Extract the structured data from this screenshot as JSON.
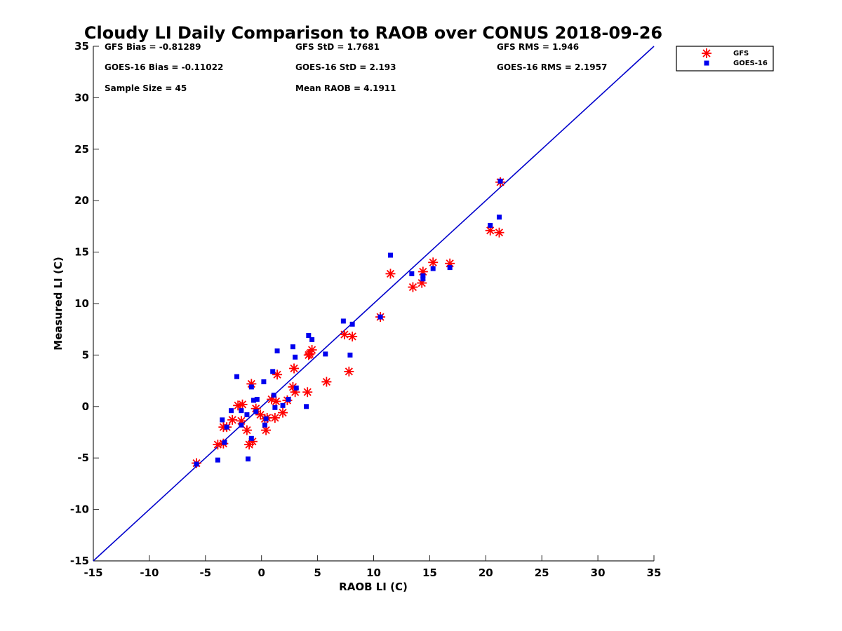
{
  "chart_data": {
    "type": "scatter",
    "title": "Cloudy LI Daily Comparison to RAOB over CONUS 2018-09-26",
    "xlabel": "RAOB LI (C)",
    "ylabel": "Measured LI (C)",
    "xlim": [
      -15,
      35
    ],
    "ylim": [
      -15,
      35
    ],
    "xticks": [
      -15,
      -10,
      -5,
      0,
      5,
      10,
      15,
      20,
      25,
      30,
      35
    ],
    "yticks": [
      -15,
      -10,
      -5,
      0,
      5,
      10,
      15,
      20,
      25,
      30,
      35
    ],
    "tick_labels_x": [
      "-15",
      "-10",
      "-5",
      "0",
      "5",
      "10",
      "15",
      "20",
      "25",
      "30",
      "35"
    ],
    "tick_labels_y": [
      "-15",
      "-10",
      "-5",
      "0",
      "5",
      "10",
      "15",
      "20",
      "25",
      "30",
      "35"
    ],
    "grid": false,
    "legend_position": "outside top-right",
    "reference_line": {
      "x": [
        -15,
        35
      ],
      "y": [
        -15,
        35
      ],
      "color": "#0000cc"
    },
    "stats": [
      "GFS Bias = -0.81289",
      "GFS StD = 1.7681",
      "GFS RMS = 1.946",
      "GOES-16 Bias = -0.11022",
      "GOES-16 StD = 2.193",
      "GOES-16 RMS = 2.1957",
      "Sample Size = 45",
      "Mean RAOB = 4.1911"
    ],
    "series": [
      {
        "name": "GFS",
        "marker": "asterisk",
        "color": "#ff0000",
        "points": [
          [
            -5.8,
            -5.5
          ],
          [
            -3.9,
            -3.7
          ],
          [
            -3.4,
            -3.6
          ],
          [
            -3.4,
            -2.0
          ],
          [
            -3.1,
            -2.0
          ],
          [
            -2.6,
            -1.3
          ],
          [
            -2.1,
            0.1
          ],
          [
            -1.8,
            -1.4
          ],
          [
            -1.7,
            0.2
          ],
          [
            -1.3,
            -2.3
          ],
          [
            -1.1,
            -3.7
          ],
          [
            -0.8,
            -3.4
          ],
          [
            -0.9,
            2.2
          ],
          [
            -0.5,
            -0.2
          ],
          [
            -0.1,
            -0.8
          ],
          [
            0.3,
            -1.2
          ],
          [
            0.4,
            -2.3
          ],
          [
            0.5,
            -1.1
          ],
          [
            0.9,
            0.7
          ],
          [
            1.2,
            -1.1
          ],
          [
            1.3,
            0.5
          ],
          [
            1.4,
            3.1
          ],
          [
            1.9,
            -0.6
          ],
          [
            2.3,
            0.6
          ],
          [
            2.8,
            1.9
          ],
          [
            2.9,
            3.7
          ],
          [
            3.0,
            1.4
          ],
          [
            4.1,
            1.4
          ],
          [
            4.3,
            5.1
          ],
          [
            4.5,
            5.5
          ],
          [
            5.8,
            2.4
          ],
          [
            7.4,
            7.0
          ],
          [
            7.8,
            3.4
          ],
          [
            8.1,
            6.8
          ],
          [
            10.6,
            8.7
          ],
          [
            11.5,
            12.9
          ],
          [
            13.5,
            11.6
          ],
          [
            14.3,
            12.0
          ],
          [
            14.4,
            13.1
          ],
          [
            15.3,
            14.0
          ],
          [
            16.8,
            13.9
          ],
          [
            20.4,
            17.1
          ],
          [
            21.2,
            16.9
          ],
          [
            21.3,
            21.8
          ],
          [
            4.2,
            5.0
          ]
        ]
      },
      {
        "name": "GOES-16",
        "marker": "square",
        "color": "#0000ee",
        "points": [
          [
            -5.8,
            -5.6
          ],
          [
            -3.9,
            -5.2
          ],
          [
            -3.5,
            -1.3
          ],
          [
            -3.3,
            -3.5
          ],
          [
            -3.1,
            -2.0
          ],
          [
            -2.7,
            -0.4
          ],
          [
            -2.2,
            2.9
          ],
          [
            -1.8,
            -0.4
          ],
          [
            -1.8,
            -1.8
          ],
          [
            -1.3,
            -0.8
          ],
          [
            -1.2,
            -5.1
          ],
          [
            -0.9,
            1.9
          ],
          [
            -0.9,
            -3.1
          ],
          [
            -0.7,
            0.6
          ],
          [
            -0.4,
            0.7
          ],
          [
            -0.5,
            -0.5
          ],
          [
            0.2,
            2.4
          ],
          [
            0.3,
            -1.8
          ],
          [
            0.4,
            -1.2
          ],
          [
            1.0,
            3.4
          ],
          [
            1.1,
            1.1
          ],
          [
            1.2,
            -0.1
          ],
          [
            1.4,
            5.4
          ],
          [
            1.9,
            0.1
          ],
          [
            2.4,
            0.7
          ],
          [
            2.8,
            5.8
          ],
          [
            3.0,
            4.8
          ],
          [
            3.1,
            1.8
          ],
          [
            4.0,
            0.0
          ],
          [
            4.2,
            6.9
          ],
          [
            4.5,
            6.5
          ],
          [
            5.7,
            5.1
          ],
          [
            7.3,
            8.3
          ],
          [
            7.9,
            5.0
          ],
          [
            8.1,
            8.0
          ],
          [
            10.6,
            8.7
          ],
          [
            11.5,
            14.7
          ],
          [
            13.4,
            12.9
          ],
          [
            14.4,
            12.7
          ],
          [
            14.4,
            12.4
          ],
          [
            15.3,
            13.4
          ],
          [
            16.8,
            13.5
          ],
          [
            20.4,
            17.6
          ],
          [
            21.2,
            18.4
          ],
          [
            21.3,
            21.9
          ]
        ]
      }
    ]
  }
}
